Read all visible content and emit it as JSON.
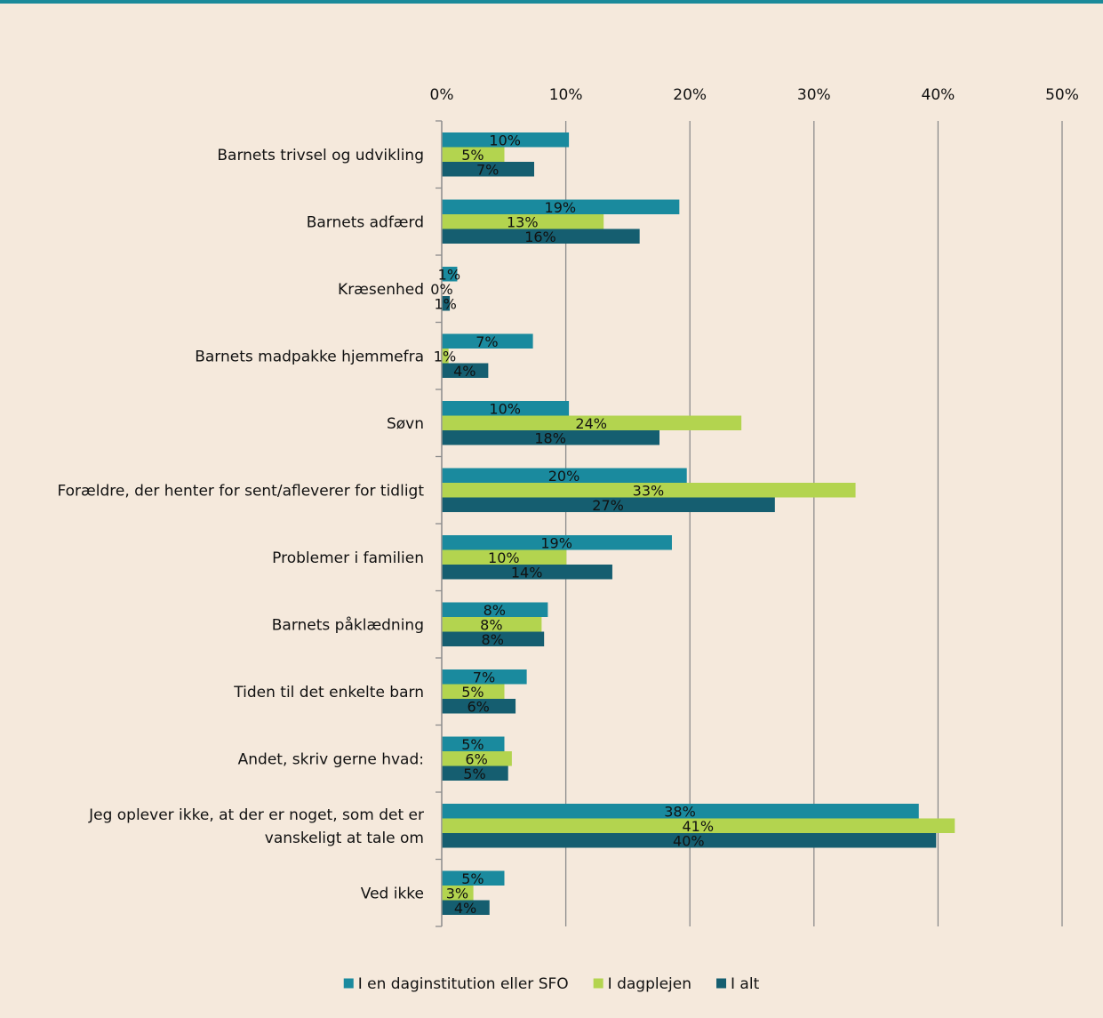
{
  "colors": {
    "background": "#F5E9DC",
    "top_rule": "#1A8A9A",
    "gridline": "#8C8C8C",
    "axis": "#8C8C8C"
  },
  "chart_data": {
    "type": "bar",
    "orientation": "horizontal",
    "xlim": [
      0,
      50
    ],
    "x_ticks": [
      "0%",
      "10%",
      "20%",
      "30%",
      "40%",
      "50%"
    ],
    "x_axis_position": "top",
    "grid": true,
    "legend_position": "bottom",
    "categories": [
      [
        "Barnets trivsel og udvikling"
      ],
      [
        "Barnets adfærd"
      ],
      [
        "Kræsenhed"
      ],
      [
        "Barnets madpakke hjemmefra"
      ],
      [
        "Søvn"
      ],
      [
        "Forældre, der henter for sent/afleverer for tidligt"
      ],
      [
        "Problemer i familien"
      ],
      [
        "Barnets påklædning"
      ],
      [
        "Tiden til det enkelte barn"
      ],
      [
        "Andet, skriv gerne hvad:"
      ],
      [
        "Jeg oplever ikke, at der er noget, som det er",
        "vanskeligt at tale om"
      ],
      [
        "Ved ikke"
      ]
    ],
    "series": [
      {
        "name": "I en daginstitution eller SFO",
        "color": "#1A8A9E",
        "values": [
          10.2,
          19.1,
          1.2,
          7.3,
          10.2,
          19.7,
          18.5,
          8.5,
          6.8,
          5.0,
          38.4,
          5.0
        ],
        "labels": [
          "10%",
          "19%",
          "1%",
          "7%",
          "10%",
          "20%",
          "19%",
          "8%",
          "7%",
          "5%",
          "38%",
          "5%"
        ]
      },
      {
        "name": "I dagplejen",
        "color": "#B3D44F",
        "values": [
          5.0,
          13.0,
          0.0,
          0.5,
          24.1,
          33.3,
          10.0,
          8.0,
          5.0,
          5.6,
          41.3,
          2.5
        ],
        "labels": [
          "5%",
          "13%",
          "0%",
          "1%",
          "24%",
          "33%",
          "10%",
          "8%",
          "5%",
          "6%",
          "41%",
          "3%"
        ]
      },
      {
        "name": "I alt",
        "color": "#155E70",
        "values": [
          7.4,
          15.9,
          0.6,
          3.7,
          17.5,
          26.8,
          13.7,
          8.2,
          5.9,
          5.3,
          39.8,
          3.8
        ],
        "labels": [
          "7%",
          "16%",
          "1%",
          "4%",
          "18%",
          "27%",
          "14%",
          "8%",
          "6%",
          "5%",
          "40%",
          "4%"
        ]
      }
    ]
  }
}
